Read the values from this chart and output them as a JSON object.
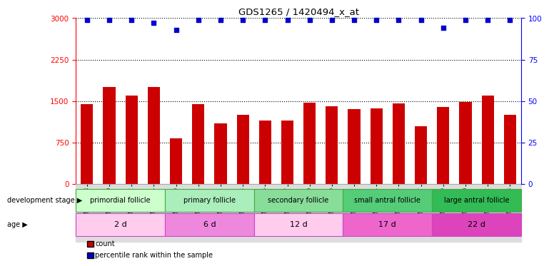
{
  "title": "GDS1265 / 1420494_x_at",
  "samples": [
    "GSM75708",
    "GSM75710",
    "GSM75712",
    "GSM75714",
    "GSM74060",
    "GSM74061",
    "GSM74062",
    "GSM74063",
    "GSM75715",
    "GSM75717",
    "GSM75719",
    "GSM75720",
    "GSM75722",
    "GSM75724",
    "GSM75725",
    "GSM75727",
    "GSM75729",
    "GSM75730",
    "GSM75732",
    "GSM75733"
  ],
  "counts": [
    1450,
    1750,
    1600,
    1750,
    830,
    1450,
    1100,
    1250,
    1150,
    1150,
    1470,
    1400,
    1350,
    1370,
    1460,
    1050,
    1390,
    1480,
    1600,
    1250
  ],
  "percentiles": [
    99,
    99,
    99,
    97,
    93,
    99,
    99,
    99,
    99,
    99,
    99,
    99,
    99,
    99,
    99,
    99,
    94,
    99,
    99,
    99
  ],
  "bar_color": "#cc0000",
  "dot_color": "#0000cc",
  "ylim_left": [
    0,
    3000
  ],
  "ylim_right": [
    0,
    100
  ],
  "yticks_left": [
    0,
    750,
    1500,
    2250,
    3000
  ],
  "yticks_right": [
    0,
    25,
    50,
    75,
    100
  ],
  "grid_values": [
    750,
    1500,
    2250,
    3000
  ],
  "stages": [
    {
      "label": "primordial follicle",
      "count": 4,
      "color": "#ccffcc"
    },
    {
      "label": "primary follicle",
      "count": 4,
      "color": "#aaeebb"
    },
    {
      "label": "secondary follicle",
      "count": 4,
      "color": "#88dd99"
    },
    {
      "label": "small antral follicle",
      "count": 4,
      "color": "#55cc77"
    },
    {
      "label": "large antral follicle",
      "count": 4,
      "color": "#33bb55"
    }
  ],
  "ages": [
    {
      "label": "2 d",
      "count": 4,
      "color": "#ffccee"
    },
    {
      "label": "6 d",
      "count": 4,
      "color": "#ee88dd"
    },
    {
      "label": "12 d",
      "count": 4,
      "color": "#ffccee"
    },
    {
      "label": "17 d",
      "count": 4,
      "color": "#ee66cc"
    },
    {
      "label": "22 d",
      "count": 4,
      "color": "#dd44bb"
    }
  ],
  "dev_stage_label": "development stage",
  "age_label": "age",
  "legend_count_label": "count",
  "legend_percentile_label": "percentile rank within the sample",
  "stage_edge_color": "#44aa44",
  "age_edge_color": "#cc44cc",
  "xtick_bg": "#dddddd"
}
